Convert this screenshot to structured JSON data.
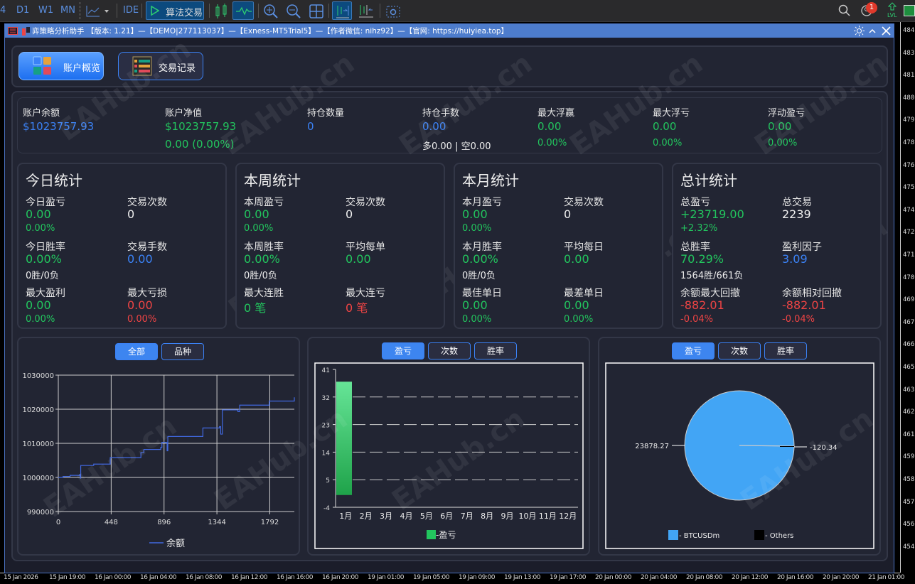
{
  "toolbar": {
    "timeframes": [
      "4",
      "D1",
      "W1",
      "MN"
    ],
    "ide_label": "IDE",
    "algo_trading_label": "算法交易",
    "notification_count": "1",
    "lvl_label": "LVL"
  },
  "price_axis": [
    "484",
    "483",
    "481",
    "480",
    "479",
    "478",
    "476",
    "475",
    "474",
    "472",
    "471",
    "470",
    "469",
    "467",
    "466",
    "465",
    "463",
    "462",
    "461",
    "459",
    "458",
    "457",
    "456",
    "454"
  ],
  "time_axis": [
    "15 Jan 2026",
    "15 Jan 19:00",
    "16 Jan 00:00",
    "16 Jan 04:00",
    "16 Jan 08:00",
    "16 Jan 12:00",
    "16 Jan 16:00",
    "16 Jan 20:00",
    "19 Jan 01:00",
    "19 Jan 05:00",
    "19 Jan 09:00",
    "19 Jan 13:00",
    "19 Jan 17:00",
    "20 Jan 00:00",
    "20 Jan 04:00",
    "20 Jan 08:00",
    "20 Jan 12:00",
    "20 Jan 16:00",
    "20 Jan 20:00",
    "21 Jan 01:00"
  ],
  "window": {
    "title": "弈策略分析助手 【版本: 1.21】—【DEMO|277113037】—【Exness-MT5Trial5】—【作者微信: nihz92】—【官网: https://huiyiea.top】"
  },
  "nav": {
    "overview_label": "账户概览",
    "trades_label": "交易记录"
  },
  "watermark": "EAHub.cn",
  "summary": [
    {
      "label": "账户余额",
      "value": "$1023757.93",
      "value_color": "blue",
      "sub": ""
    },
    {
      "label": "账户净值",
      "value": "$1023757.93",
      "value_color": "green",
      "sub": "0.00 (0.00%)",
      "sub_color": "green"
    },
    {
      "label": "持仓数量",
      "value": "0",
      "value_color": "blue",
      "sub": ""
    },
    {
      "label": "持仓手数",
      "value": "0.00",
      "value_color": "blue",
      "sub": "多0.00 | 空0.00",
      "sub_color": "white"
    },
    {
      "label": "最大浮赢",
      "value": "0.00",
      "value_color": "green",
      "sub": "0.00%",
      "sub_color": "green"
    },
    {
      "label": "最大浮亏",
      "value": "0.00",
      "value_color": "green",
      "sub": "0.00%",
      "sub_color": "green"
    },
    {
      "label": "浮动盈亏",
      "value": "0.00",
      "value_color": "green",
      "sub": "0.00%",
      "sub_color": "green"
    }
  ],
  "stat_cards": [
    {
      "title": "今日统计",
      "cells": [
        {
          "label": "今日盈亏",
          "value": "0.00",
          "vc": "green",
          "sub": "0.00%",
          "sc": "green"
        },
        {
          "label": "交易次数",
          "value": "0",
          "vc": "white",
          "sub": "",
          "sc": "white"
        },
        {
          "label": "今日胜率",
          "value": "0.00%",
          "vc": "green",
          "sub": "0胜/0负",
          "sc": "white"
        },
        {
          "label": "交易手数",
          "value": "0.00",
          "vc": "blue",
          "sub": "",
          "sc": "white"
        },
        {
          "label": "最大盈利",
          "value": "0.00",
          "vc": "green",
          "sub": "0.00%",
          "sc": "green"
        },
        {
          "label": "最大亏损",
          "value": "0.00",
          "vc": "red",
          "sub": "0.00%",
          "sc": "red"
        }
      ]
    },
    {
      "title": "本周统计",
      "cells": [
        {
          "label": "本周盈亏",
          "value": "0.00",
          "vc": "green",
          "sub": "0.00%",
          "sc": "green"
        },
        {
          "label": "交易次数",
          "value": "0",
          "vc": "white",
          "sub": "",
          "sc": "white"
        },
        {
          "label": "本周胜率",
          "value": "0.00%",
          "vc": "green",
          "sub": "0胜/0负",
          "sc": "white"
        },
        {
          "label": "平均每单",
          "value": "0.00",
          "vc": "green",
          "sub": "",
          "sc": "white"
        },
        {
          "label": "最大连胜",
          "value": "0 笔",
          "vc": "green",
          "sub": "",
          "sc": "green"
        },
        {
          "label": "最大连亏",
          "value": "0 笔",
          "vc": "red",
          "sub": "",
          "sc": "red"
        }
      ]
    },
    {
      "title": "本月统计",
      "cells": [
        {
          "label": "本月盈亏",
          "value": "0.00",
          "vc": "green",
          "sub": "0.00%",
          "sc": "green"
        },
        {
          "label": "交易次数",
          "value": "0",
          "vc": "white",
          "sub": "",
          "sc": "white"
        },
        {
          "label": "本月胜率",
          "value": "0.00%",
          "vc": "green",
          "sub": "0胜/0负",
          "sc": "white"
        },
        {
          "label": "平均每日",
          "value": "0.00",
          "vc": "green",
          "sub": "",
          "sc": "white"
        },
        {
          "label": "最佳单日",
          "value": "0.00",
          "vc": "green",
          "sub": "0.00%",
          "sc": "green"
        },
        {
          "label": "最差单日",
          "value": "0.00",
          "vc": "green",
          "sub": "0.00%",
          "sc": "green"
        }
      ]
    },
    {
      "title": "总计统计",
      "cells": [
        {
          "label": "总盈亏",
          "value": "+23719.00",
          "vc": "green",
          "sub": "+2.32%",
          "sc": "green"
        },
        {
          "label": "总交易",
          "value": "2239",
          "vc": "white",
          "sub": "",
          "sc": "white"
        },
        {
          "label": "总胜率",
          "value": "70.29%",
          "vc": "green",
          "sub": "1564胜/661负",
          "sc": "white"
        },
        {
          "label": "盈利因子",
          "value": "3.09",
          "vc": "blue",
          "sub": "",
          "sc": "white"
        },
        {
          "label": "余额最大回撤",
          "value": "-882.01",
          "vc": "red",
          "sub": "-0.04%",
          "sc": "red"
        },
        {
          "label": "余额相对回撤",
          "value": "-882.01",
          "vc": "red",
          "sub": "-0.04%",
          "sc": "red"
        }
      ]
    }
  ],
  "colors": {
    "green": "#22c55e",
    "blue": "#3b82f6",
    "red": "#ef4444",
    "white": "#eeeeee",
    "line": "#4169e1",
    "pie_btc": "#42a5f5",
    "pie_others": "#000000"
  },
  "balance_chart": {
    "tabs": [
      "全部",
      "品种"
    ],
    "active_tab": 0
  },
  "pnl_chart": {
    "tabs": [
      "盈亏",
      "次数",
      "胜率"
    ],
    "active_tab": 0
  },
  "symbol_chart": {
    "tabs": [
      "盈亏",
      "次数",
      "胜率"
    ],
    "active_tab": 0
  },
  "chart_data": [
    {
      "type": "line",
      "title": "",
      "xlim": [
        0,
        2000
      ],
      "ylim": [
        990000,
        1030000
      ],
      "xticks": [
        "0",
        "448",
        "896",
        "1344",
        "1792"
      ],
      "yticks": [
        "990000",
        "1000000",
        "1010000",
        "1020000",
        "1030000"
      ],
      "grid": true,
      "legend": "bottom",
      "series": [
        {
          "name": "余额",
          "x": [
            0,
            40,
            100,
            180,
            186,
            190,
            300,
            440,
            700,
            725,
            868,
            878,
            915,
            922,
            928,
            1225,
            1366,
            1376,
            1390,
            1517,
            1522,
            1537,
            1788,
            2000
          ],
          "y": [
            1000000,
            1000300,
            1000600,
            1000800,
            999800,
            1003500,
            1003900,
            1005800,
            1007300,
            1008200,
            1008800,
            1010300,
            1010200,
            1007800,
            1012000,
            1014500,
            1014900,
            1012700,
            1019800,
            1019800,
            1019300,
            1021200,
            1022400,
            1023500
          ]
        }
      ]
    },
    {
      "type": "bar",
      "title": "",
      "categories": [
        "1月",
        "2月",
        "3月",
        "4月",
        "5月",
        "6月",
        "7月",
        "8月",
        "9月",
        "10月",
        "11月",
        "12月"
      ],
      "yticks": [
        "-4",
        "5",
        "14",
        "23",
        "32",
        "41"
      ],
      "ylim": [
        -4,
        41
      ],
      "grid": true,
      "legend": "bottom",
      "series": [
        {
          "name": "-盈亏",
          "values": [
            37,
            0,
            0,
            0,
            0,
            0,
            0,
            0,
            0,
            0,
            0,
            0
          ]
        }
      ]
    },
    {
      "type": "pie",
      "title": "",
      "legend": "bottom",
      "slices": [
        {
          "name": "- BTCUSDm",
          "value": 23878.27,
          "label": "23878.27"
        },
        {
          "name": "- Others",
          "value": -120.34,
          "label": "-120.34"
        }
      ]
    }
  ]
}
